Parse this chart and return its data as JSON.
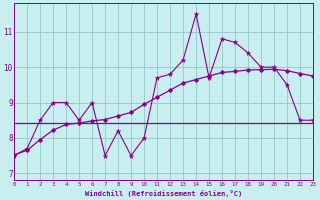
{
  "xlabel": "Windchill (Refroidissement éolien,°C)",
  "xlim": [
    0,
    23
  ],
  "ylim": [
    6.8,
    11.8
  ],
  "yticks": [
    7,
    8,
    9,
    10,
    11
  ],
  "xticks": [
    0,
    1,
    2,
    3,
    4,
    5,
    6,
    7,
    8,
    9,
    10,
    11,
    12,
    13,
    14,
    15,
    16,
    17,
    18,
    19,
    20,
    21,
    22,
    23
  ],
  "bg_color": "#c8eef0",
  "line_color": "#880088",
  "grid_color": "#99cccc",
  "line1_x": [
    0,
    1,
    2,
    3,
    4,
    5,
    6,
    7,
    8,
    9,
    10,
    11,
    12,
    13,
    14,
    15,
    16,
    17,
    18,
    19,
    20,
    21,
    22,
    23
  ],
  "line1_y": [
    7.5,
    7.7,
    8.5,
    9.0,
    9.0,
    8.5,
    9.0,
    7.5,
    8.2,
    7.5,
    8.0,
    9.7,
    9.8,
    10.2,
    11.5,
    9.7,
    10.8,
    10.7,
    10.4,
    10.0,
    10.0,
    9.5,
    8.5,
    8.5
  ],
  "line2_x": [
    0,
    23
  ],
  "line2_y": [
    8.42,
    8.42
  ],
  "line3_x": [
    0,
    1,
    2,
    3,
    4,
    5,
    6,
    7,
    8,
    9,
    10,
    11,
    12,
    13,
    14,
    15,
    16,
    17,
    18,
    19,
    20,
    21,
    22,
    23
  ],
  "line3_y": [
    7.52,
    7.65,
    7.95,
    8.22,
    8.38,
    8.42,
    8.48,
    8.52,
    8.62,
    8.72,
    8.95,
    9.15,
    9.35,
    9.55,
    9.65,
    9.75,
    9.85,
    9.88,
    9.92,
    9.93,
    9.94,
    9.9,
    9.82,
    9.75
  ]
}
